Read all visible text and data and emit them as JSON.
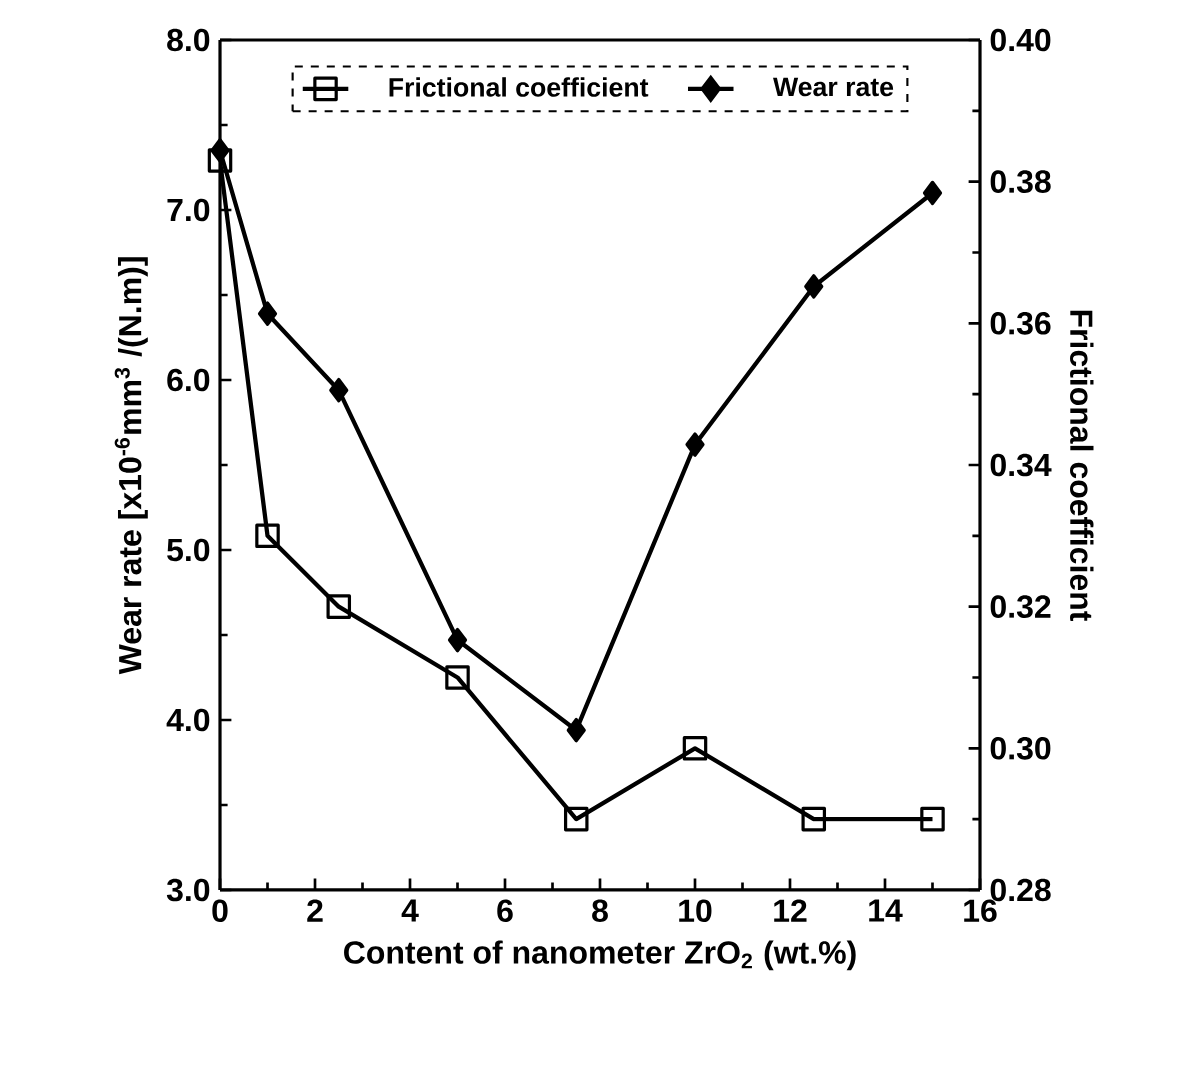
{
  "chart_data": {
    "type": "line",
    "xlabel": "Content of nanometer ZrO$_{2}$ (wt.%)",
    "ylabel": "Wear rate [x10$^{-6}$mm$^{3}$ /(N.m)]",
    "y2label": "Frictional coefficient",
    "x": [
      0,
      1,
      2.5,
      5,
      7.5,
      10,
      12.5,
      15
    ],
    "series": [
      {
        "name": "Frictional coefficient",
        "color": "#000000",
        "axis": "y2",
        "marker": "square",
        "values": [
          0.383,
          0.33,
          0.32,
          0.31,
          0.29,
          0.3,
          0.29,
          0.29
        ]
      },
      {
        "name": "Wear rate",
        "color": "#000000",
        "marker": "diamond",
        "values": [
          7.35,
          6.39,
          5.94,
          4.47,
          3.94,
          5.62,
          6.55,
          7.1
        ]
      }
    ],
    "xlim": [
      0,
      16
    ],
    "xticks": [
      0,
      2,
      4,
      6,
      8,
      10,
      12,
      14,
      16
    ],
    "ylim": [
      3,
      8
    ],
    "yticks": [
      {
        "value": 3,
        "label": "3.0"
      },
      {
        "value": 4,
        "label": "4.0"
      },
      {
        "value": 5,
        "label": "5.0"
      },
      {
        "value": 6,
        "label": "6.0"
      },
      {
        "value": 7,
        "label": "7.0"
      },
      {
        "value": 8,
        "label": "8.0"
      }
    ],
    "y2lim": [
      0.28,
      0.4
    ],
    "y2ticks": [
      {
        "value": 0.28,
        "label": "0.28"
      },
      {
        "value": 0.3,
        "label": "0.30"
      },
      {
        "value": 0.32,
        "label": "0.32"
      },
      {
        "value": 0.34,
        "label": "0.34"
      },
      {
        "value": 0.36,
        "label": "0.36"
      },
      {
        "value": 0.38,
        "label": "0.38"
      },
      {
        "value": 0.4,
        "label": "0.40"
      }
    ],
    "legend": "top",
    "line_style": "solid",
    "grid": false
  }
}
